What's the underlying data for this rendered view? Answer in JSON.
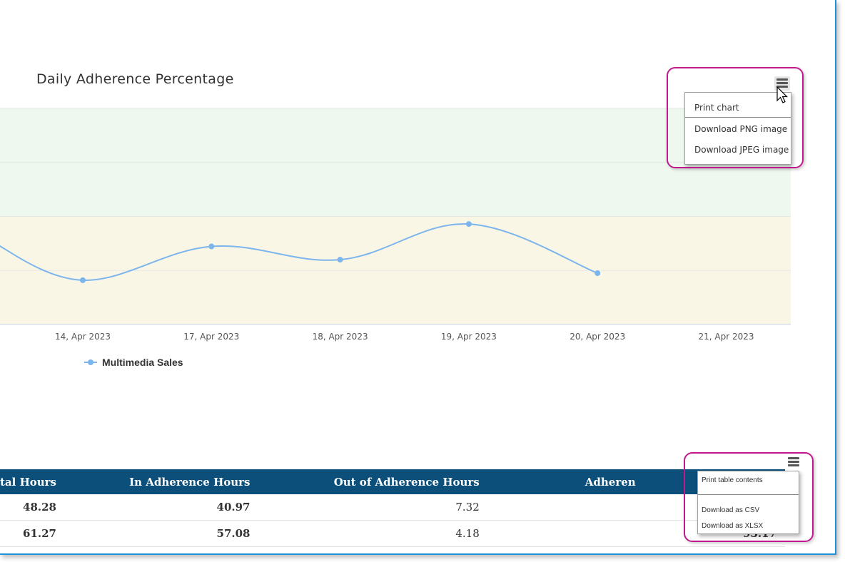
{
  "chart_data": {
    "type": "line",
    "title": "Daily Adherence Percentage",
    "categories": [
      "14, Apr 2023",
      "17, Apr 2023",
      "18, Apr 2023",
      "19, Apr 2023",
      "20, Apr 2023",
      "21, Apr 2023"
    ],
    "series": [
      {
        "name": "Multimedia Sales",
        "color": "#7cb5ec",
        "values": [
          76.4,
          88.9,
          84.0,
          97.2,
          79.0,
          null
        ]
      }
    ],
    "ylim": [
      60,
      140
    ],
    "grid": true,
    "bands": [
      {
        "from": 60,
        "to": 100,
        "color": "#faf6e6"
      },
      {
        "from": 100,
        "to": 140,
        "color": "#eef8ef"
      }
    ],
    "legend": "bottom-left"
  },
  "chart_menu": {
    "items": [
      "Print chart",
      "Download PNG image",
      "Download JPEG image"
    ]
  },
  "table_menu": {
    "items": [
      "Print table contents",
      "Download as CSV",
      "Download as XLSX"
    ]
  },
  "table": {
    "columns": [
      "tal Hours",
      "In Adherence Hours",
      "Out of Adherence Hours",
      "Adheren"
    ],
    "rows": [
      [
        "48.28",
        "40.97",
        "7.32",
        ""
      ],
      [
        "61.27",
        "57.08",
        "4.18",
        "93.17"
      ]
    ]
  }
}
